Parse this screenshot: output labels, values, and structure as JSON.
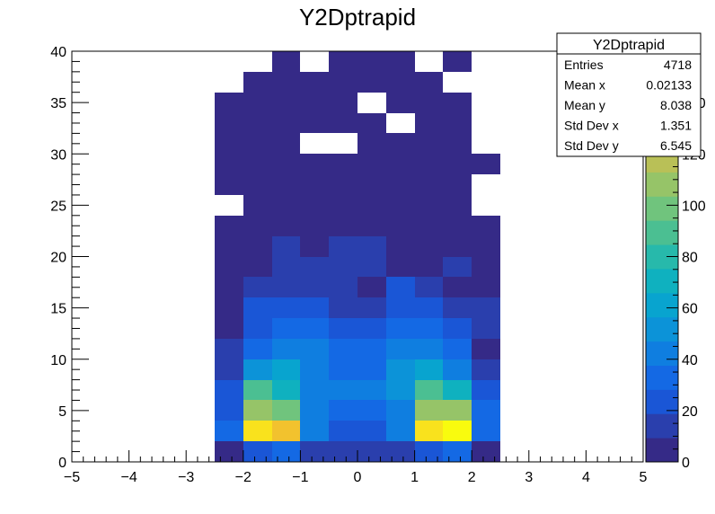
{
  "chart_data": {
    "type": "heatmap",
    "title": "Y2Dptrapid",
    "xlabel": "",
    "ylabel": "",
    "xlim": [
      -5,
      5
    ],
    "ylim": [
      0,
      40
    ],
    "zlim": [
      0,
      160
    ],
    "x_ticks": [
      "-5",
      "-4",
      "-3",
      "-2",
      "-1",
      "0",
      "1",
      "2",
      "3",
      "4",
      "5"
    ],
    "y_ticks": [
      "0",
      "5",
      "10",
      "15",
      "20",
      "25",
      "30",
      "35",
      "40"
    ],
    "z_ticks": [
      "0",
      "20",
      "40",
      "60",
      "80",
      "100",
      "120",
      "140"
    ],
    "x_edges": [
      -2.5,
      -2.0,
      -1.5,
      -1.0,
      -0.5,
      0.0,
      0.5,
      1.0,
      1.5,
      2.0,
      2.5
    ],
    "y_bin_width": 2,
    "counts": [
      [
        3,
        25,
        30,
        15,
        12,
        12,
        18,
        28,
        30,
        8
      ],
      [
        30,
        150,
        140,
        40,
        20,
        25,
        40,
        150,
        160,
        30
      ],
      [
        25,
        110,
        100,
        45,
        35,
        30,
        45,
        105,
        110,
        30
      ],
      [
        20,
        85,
        75,
        45,
        40,
        40,
        55,
        90,
        75,
        25
      ],
      [
        18,
        50,
        60,
        40,
        35,
        35,
        50,
        60,
        45,
        15
      ],
      [
        10,
        30,
        45,
        40,
        35,
        35,
        40,
        45,
        35,
        8
      ],
      [
        8,
        25,
        35,
        30,
        28,
        28,
        30,
        35,
        25,
        12
      ],
      [
        8,
        20,
        22,
        22,
        18,
        18,
        20,
        20,
        18,
        10
      ],
      [
        6,
        15,
        15,
        15,
        15,
        4,
        20,
        15,
        8,
        6
      ],
      [
        5,
        5,
        15,
        15,
        15,
        15,
        6,
        6,
        15,
        5
      ],
      [
        4,
        5,
        12,
        4,
        12,
        12,
        4,
        4,
        5,
        4
      ],
      [
        4,
        4,
        4,
        4,
        4,
        4,
        4,
        4,
        4,
        4
      ],
      [
        0,
        4,
        4,
        4,
        4,
        4,
        4,
        4,
        4,
        0
      ],
      [
        3,
        3,
        3,
        3,
        3,
        3,
        3,
        3,
        3,
        0
      ],
      [
        3,
        3,
        3,
        3,
        3,
        3,
        3,
        3,
        3,
        3
      ],
      [
        3,
        3,
        3,
        0,
        0,
        3,
        3,
        3,
        3,
        0
      ],
      [
        3,
        3,
        3,
        3,
        3,
        3,
        0,
        3,
        3,
        0
      ],
      [
        3,
        3,
        3,
        3,
        3,
        0,
        3,
        3,
        3,
        0
      ],
      [
        0,
        3,
        3,
        3,
        3,
        3,
        3,
        3,
        0,
        0
      ],
      [
        0,
        0,
        3,
        0,
        3,
        3,
        3,
        0,
        3,
        0
      ]
    ],
    "stats": {
      "title": "Y2Dptrapid",
      "rows": [
        {
          "label": "Entries",
          "value": "4718"
        },
        {
          "label": "Mean x",
          "value": "0.02133"
        },
        {
          "label": "Mean y",
          "value": "8.038"
        },
        {
          "label": "Std Dev x",
          "value": "1.351"
        },
        {
          "label": "Std Dev y",
          "value": "6.545"
        }
      ]
    },
    "palette": [
      "#352a87",
      "#2a3fad",
      "#1a56d6",
      "#1469e4",
      "#0f7ee0",
      "#0c93d8",
      "#08a4cf",
      "#0fb1bf",
      "#27b9ab",
      "#4bbf92",
      "#70c47d",
      "#96c468",
      "#b9c057",
      "#d8ba3f",
      "#f2c22e",
      "#f9e21d",
      "#f9fb0e"
    ]
  }
}
